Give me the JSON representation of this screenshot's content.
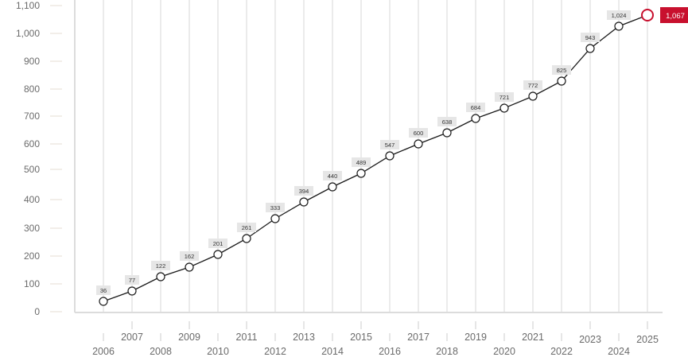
{
  "chart_data": {
    "type": "line",
    "title": "",
    "xlabel": "",
    "ylabel": "",
    "ylim": [
      0,
      1100
    ],
    "grid": "vertical",
    "legend": null,
    "categories": [
      "2006",
      "2007",
      "2008",
      "2009",
      "2010",
      "2011",
      "2012",
      "2013",
      "2014",
      "2015",
      "2016",
      "2017",
      "2018",
      "2019",
      "2020",
      "2021",
      "2022",
      "2023",
      "2024",
      "2025"
    ],
    "values": [
      36,
      77,
      122,
      162,
      201,
      261,
      333,
      394,
      440,
      489,
      547,
      600,
      638,
      684,
      721,
      772,
      825,
      943,
      1024,
      1067
    ],
    "data_labels": [
      "36",
      "77",
      "122",
      "162",
      "201",
      "261",
      "333",
      "394",
      "440",
      "489",
      "547",
      "600",
      "638",
      "684",
      "721",
      "772",
      "825",
      "943",
      "1,024",
      "1,067"
    ],
    "plot_y": [
      379,
      366,
      348,
      336,
      320,
      300,
      275,
      254,
      235,
      218,
      196,
      181,
      167,
      149,
      136,
      121,
      102,
      61,
      33,
      19
    ],
    "y_ticks": [
      {
        "label": "1,100",
        "y": 7
      },
      {
        "label": "1,000",
        "y": 42
      },
      {
        "label": "900",
        "y": 77
      },
      {
        "label": "800",
        "y": 112
      },
      {
        "label": "700",
        "y": 146
      },
      {
        "label": "600",
        "y": 181
      },
      {
        "label": "500",
        "y": 213
      },
      {
        "label": "400",
        "y": 251
      },
      {
        "label": "300",
        "y": 287
      },
      {
        "label": "200",
        "y": 322
      },
      {
        "label": "100",
        "y": 357
      },
      {
        "label": "0",
        "y": 392
      }
    ],
    "highlight": {
      "index": 19,
      "label": "1,067",
      "color": "#c8102e"
    },
    "colors": {
      "line": "#1a1a1a",
      "marker_fill": "#ffffff",
      "marker_stroke": "#1a1a1a",
      "label_bg": "#e6e6e6",
      "gridline": "#ebebeb",
      "axis": "#dcdcdc",
      "ytick": "#e5ded3",
      "text": "#6b6b6b"
    }
  }
}
